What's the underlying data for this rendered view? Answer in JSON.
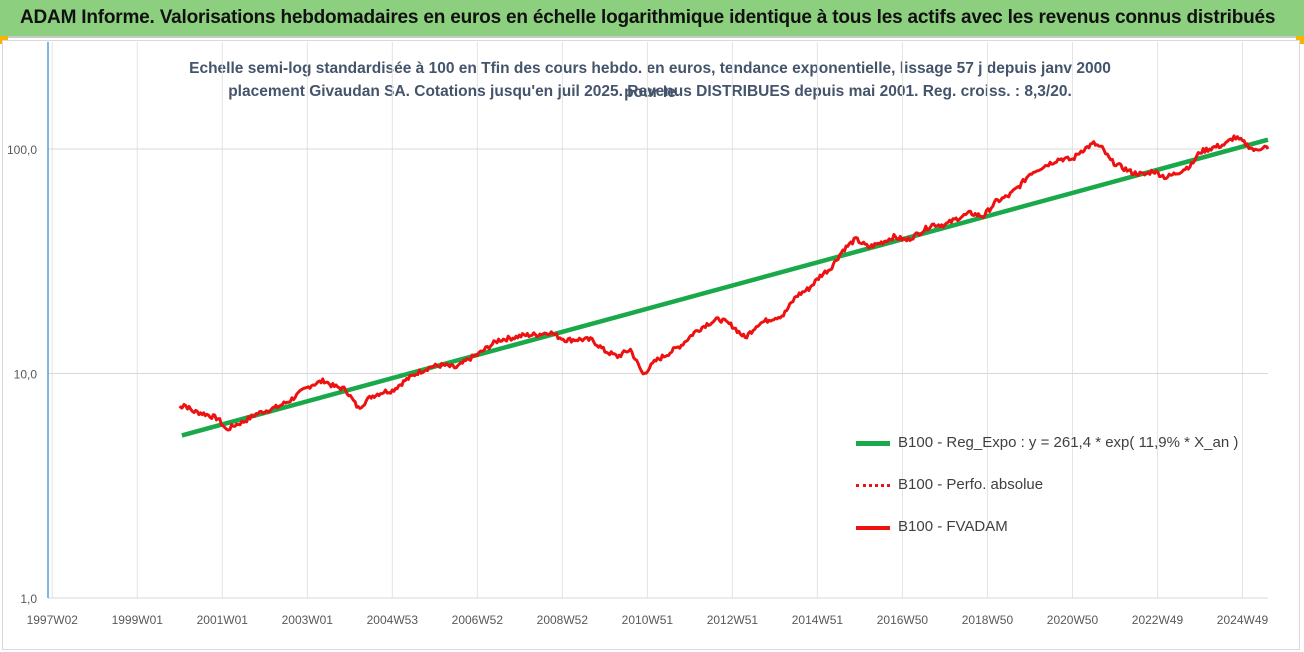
{
  "banner": {
    "title": "ADAM Informe. Valorisations hebdomadaires en euros en échelle logarithmique identique à tous les actifs avec les revenus connus distribués"
  },
  "colors": {
    "banner_bg": "#8ccf7e",
    "corner_accent": "#f4b400",
    "trend": "#1aa94a",
    "price": "#ee1111",
    "subtitle": "#44546a"
  },
  "chart_data": {
    "type": "line",
    "title_line1": "Echelle semi-log standardisée à 100 en Tfin des cours hebdo. en euros, tendance exponentielle, lissage 57 j depuis janv 2000 pour le",
    "title_line2": "placement Givaudan SA. Cotations jusqu'en juil 2025. Revenus DISTRIBUES depuis mai 2001. Reg. croiss. : 8,3/20.",
    "y_scale": "log",
    "ylim": [
      1,
      300
    ],
    "y_ticks": [
      1,
      10,
      100
    ],
    "y_tick_labels": [
      "1,0",
      "10,0",
      "100,0"
    ],
    "x_tick_labels": [
      "1997W02",
      "1999W01",
      "2001W01",
      "2003W01",
      "2004W53",
      "2006W52",
      "2008W52",
      "2010W51",
      "2012W51",
      "2014W51",
      "2016W50",
      "2018W50",
      "2020W50",
      "2022W49",
      "2024W49"
    ],
    "x_tick_years": [
      1997,
      1999,
      2001,
      2003,
      2005,
      2007,
      2009,
      2011,
      2013,
      2015,
      2017,
      2019,
      2021,
      2023,
      2025
    ],
    "xlim": [
      1996.9,
      2025.6
    ],
    "grid": true,
    "legend_position": "bottom-right",
    "legend": [
      {
        "label": "B100 - Reg_Expo : y = 261,4 * exp( 11,9% *  X_an )",
        "style": "solid-thick",
        "color": "#1aa94a"
      },
      {
        "label": "B100 - Perfo. absolue",
        "style": "dotted",
        "color": "#ee1111"
      },
      {
        "label": "B100 - FVADAM",
        "style": "solid",
        "color": "#ee1111"
      }
    ],
    "series": [
      {
        "id": "trend",
        "x": [
          2000.05,
          2025.6
        ],
        "y": [
          5.3,
          110
        ]
      },
      {
        "id": "price",
        "x": [
          2000.0,
          2000.1,
          2000.3,
          2000.6,
          2000.9,
          2001.1,
          2001.3,
          2001.5,
          2001.8,
          2002.0,
          2002.3,
          2002.6,
          2002.9,
          2003.1,
          2003.4,
          2003.6,
          2003.9,
          2004.2,
          2004.5,
          2004.8,
          2005.0,
          2005.3,
          2005.6,
          2005.9,
          2006.2,
          2006.5,
          2006.8,
          2007.0,
          2007.2,
          2007.5,
          2007.8,
          2008.1,
          2008.4,
          2008.7,
          2008.9,
          2009.1,
          2009.4,
          2009.7,
          2010.0,
          2010.3,
          2010.6,
          2010.9,
          2011.2,
          2011.5,
          2011.8,
          2012.1,
          2012.4,
          2012.7,
          2013.0,
          2013.3,
          2013.6,
          2013.9,
          2014.2,
          2014.5,
          2014.8,
          2015.1,
          2015.3,
          2015.6,
          2015.9,
          2016.2,
          2016.5,
          2016.8,
          2017.1,
          2017.4,
          2017.7,
          2018.0,
          2018.3,
          2018.6,
          2018.9,
          2019.2,
          2019.5,
          2019.8,
          2020.0,
          2020.2,
          2020.4,
          2020.7,
          2021.0,
          2021.2,
          2021.5,
          2021.7,
          2021.9,
          2022.1,
          2022.4,
          2022.7,
          2022.9,
          2023.2,
          2023.5,
          2023.8,
          2024.0,
          2024.3,
          2024.6,
          2024.8,
          2025.0,
          2025.3,
          2025.5,
          2025.6
        ],
        "y": [
          7.0,
          7.3,
          6.8,
          6.6,
          6.3,
          5.6,
          5.9,
          6.1,
          6.6,
          6.8,
          7.1,
          7.6,
          8.4,
          8.9,
          9.3,
          8.8,
          8.5,
          7.0,
          7.9,
          8.3,
          8.4,
          9.3,
          10.1,
          10.7,
          10.9,
          10.6,
          11.6,
          12.1,
          12.9,
          14.1,
          14.4,
          14.8,
          14.9,
          15.3,
          14.6,
          14.1,
          14.2,
          14.1,
          12.6,
          11.9,
          12.8,
          9.9,
          11.4,
          12.3,
          13.4,
          15.2,
          16.6,
          17.5,
          16.3,
          14.4,
          16.6,
          17.5,
          18.2,
          22.1,
          23.9,
          27.6,
          29.3,
          35.4,
          39.7,
          36.5,
          38.3,
          40.6,
          39.2,
          42.3,
          46.1,
          45.9,
          49.2,
          51.8,
          50.1,
          58.2,
          61.9,
          69.8,
          77.8,
          81.5,
          85.1,
          90.5,
          89.7,
          98.0,
          105.8,
          100.6,
          88.6,
          84.1,
          78.5,
          76.8,
          80.1,
          74.6,
          78.9,
          85.0,
          97.1,
          101.4,
          105.0,
          113.0,
          108.0,
          98.0,
          103.0,
          100.0
        ]
      }
    ]
  }
}
